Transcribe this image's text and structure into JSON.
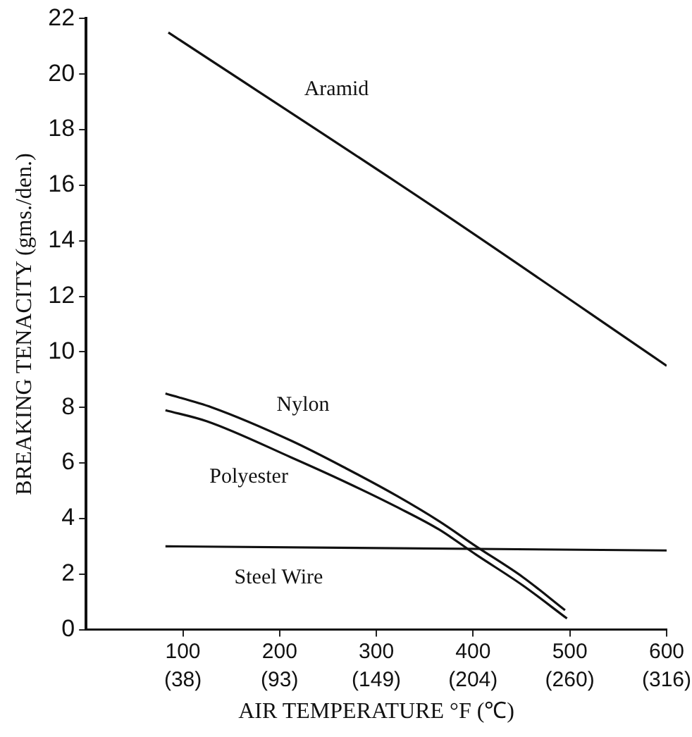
{
  "chart_data": {
    "type": "line",
    "xlabel": "AIR TEMPERATURE °F (℃)",
    "ylabel": "BREAKING TENACITY (gms./den.)",
    "xlim": [
      0,
      600
    ],
    "xticks": [
      100,
      200,
      300,
      400,
      500,
      600
    ],
    "x2lim": [
      -17.8,
      315.6
    ],
    "x2ticks": [
      {
        "value": 37.8,
        "label": "(38)"
      },
      {
        "value": 93.3,
        "label": "(93)"
      },
      {
        "value": 148.9,
        "label": "(149)"
      },
      {
        "value": 204.4,
        "label": "(204)"
      },
      {
        "value": 260,
        "label": "(260)"
      },
      {
        "value": 315.6,
        "label": "(316)"
      }
    ],
    "ylim": [
      0,
      22
    ],
    "yticks": [
      0,
      2,
      4,
      6,
      8,
      10,
      12,
      14,
      16,
      18,
      20,
      22
    ],
    "grid": false,
    "legend": false,
    "marker": "none",
    "line_style": "solid",
    "series": [
      {
        "name": "Aramid",
        "color": "#111111",
        "x": [
          85,
          360,
          600
        ],
        "values": [
          21.5,
          15.2,
          9.5
        ]
      },
      {
        "name": "Nylon",
        "color": "#111111",
        "x": [
          82,
          130,
          212,
          269,
          322,
          365,
          403,
          451,
          495
        ],
        "values": [
          8.5,
          8.0,
          6.8,
          5.8,
          4.8,
          3.9,
          3.0,
          1.9,
          0.7
        ]
      },
      {
        "name": "Polyester",
        "color": "#111111",
        "x": [
          82,
          125,
          212,
          269,
          322,
          365,
          403,
          451,
          497
        ],
        "values": [
          7.9,
          7.5,
          6.2,
          5.3,
          4.4,
          3.6,
          2.7,
          1.6,
          0.4
        ]
      },
      {
        "name": "Steel Wire",
        "color": "#111111",
        "x": [
          82,
          600
        ],
        "values": [
          3.0,
          2.85
        ]
      }
    ]
  }
}
